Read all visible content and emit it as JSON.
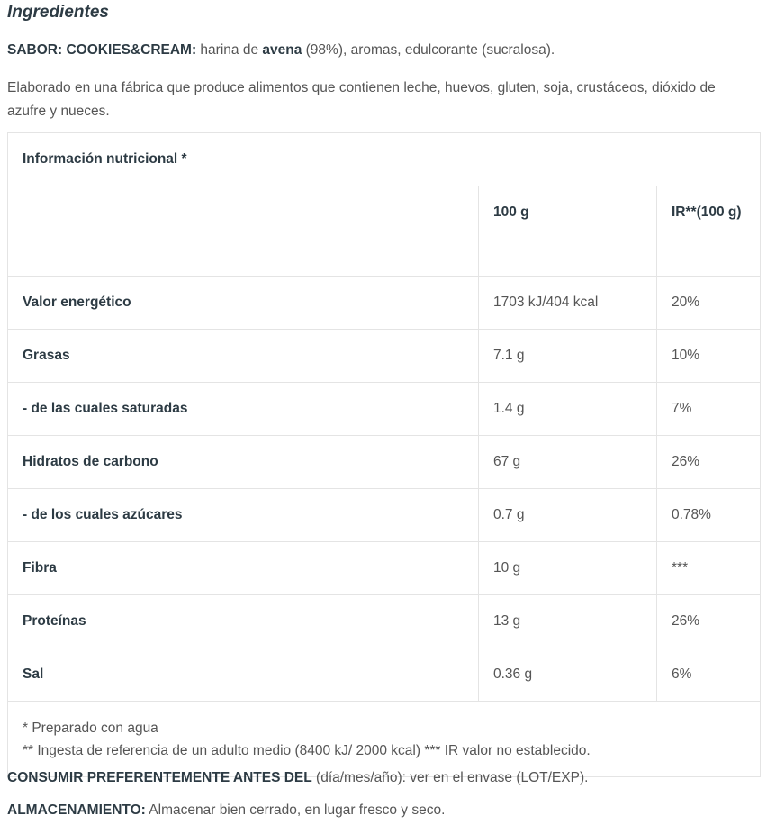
{
  "title": "Ingredientes",
  "sabor": {
    "label": "SABOR: COOKIES&CREAM:",
    "t1": " harina de ",
    "bold": "avena",
    "t2": " (98%), aromas, edulcorante (sucralosa)."
  },
  "allergens": "Elaborado en una fábrica que produce alimentos que contienen leche, huevos, gluten, soja, crustáceos, dióxido de azufre y nueces.",
  "table": {
    "caption": "Información nutricional *",
    "col1": "100 g",
    "col2": "IR**(100 g)",
    "rows": [
      {
        "name": "Valor energético",
        "v": "1703 kJ/404 kcal",
        "ir": "20%"
      },
      {
        "name": "Grasas",
        "v": "7.1 g",
        "ir": "10%"
      },
      {
        "name": "- de las cuales saturadas",
        "v": "1.4 g",
        "ir": "7%"
      },
      {
        "name": "Hidratos de carbono",
        "v": "67 g",
        "ir": "26%"
      },
      {
        "name": "- de los cuales azúcares",
        "v": "0.7 g",
        "ir": "0.78%"
      },
      {
        "name": "Fibra",
        "v": "10 g",
        "ir": "***"
      },
      {
        "name": "Proteínas",
        "v": "13 g",
        "ir": "26%"
      },
      {
        "name": "Sal",
        "v": "0.36 g",
        "ir": "6%"
      }
    ],
    "foot1": "* Preparado con agua",
    "foot2": "** Ingesta de referencia de un adulto medio (8400 kJ/ 2000 kcal) *** IR valor no establecido."
  },
  "consumir": {
    "label": "CONSUMIR PREFERENTEMENTE ANTES DEL",
    "text": " (día/mes/año): ver en el envase (LOT/EXP)."
  },
  "almacen": {
    "label": "ALMACENAMIENTO:",
    "text": " Almacenar bien cerrado, en lugar fresco y seco."
  }
}
